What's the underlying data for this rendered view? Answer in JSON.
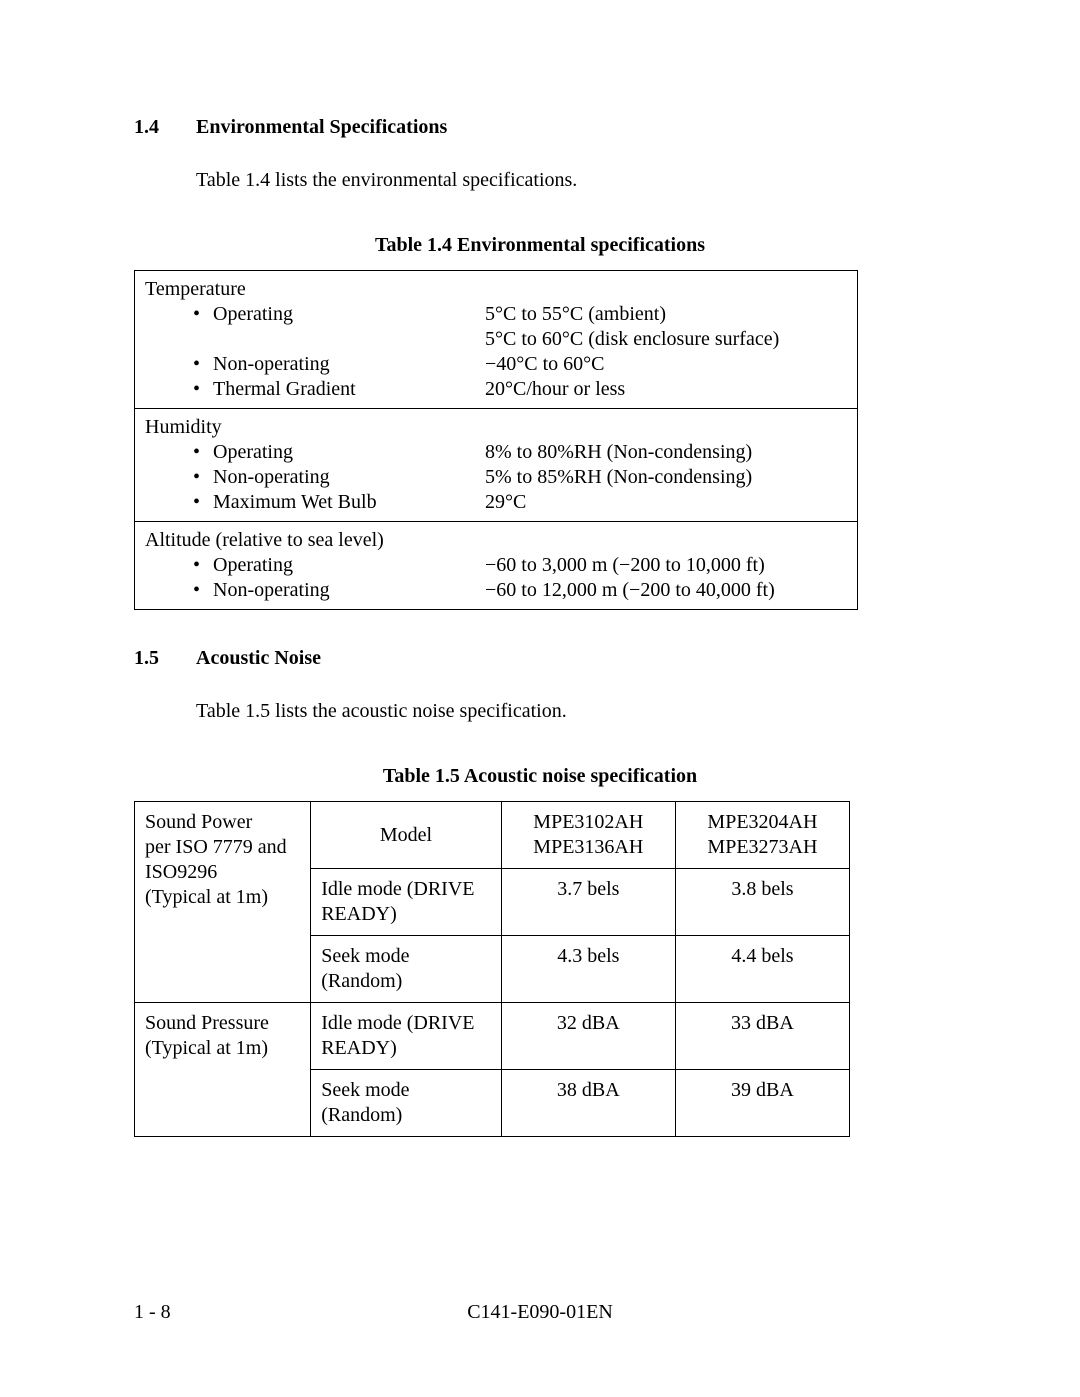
{
  "section14": {
    "num": "1.4",
    "title": "Environmental Specifications",
    "intro": "Table 1.4 lists the environmental specifications.",
    "caption": "Table 1.4    Environmental specifications"
  },
  "t14": {
    "r1": {
      "header": "Temperature",
      "b1_label": "Operating",
      "b1_val1": "5°C to 55°C (ambient)",
      "b1_val2": "5°C to 60°C (disk enclosure surface)",
      "b2_label": "Non-operating",
      "b2_val": "−40°C to 60°C",
      "b3_label": "Thermal Gradient",
      "b3_val": "20°C/hour or less"
    },
    "r2": {
      "header": "Humidity",
      "b1_label": "Operating",
      "b1_val": "8% to 80%RH (Non-condensing)",
      "b2_label": "Non-operating",
      "b2_val": "5% to 85%RH (Non-condensing)",
      "b3_label": "Maximum Wet Bulb",
      "b3_val": "29°C"
    },
    "r3": {
      "header": "Altitude (relative to sea level)",
      "b1_label": "Operating",
      "b1_val": "−60 to 3,000 m (−200 to 10,000 ft)",
      "b2_label": "Non-operating",
      "b2_val": "−60 to 12,000 m  (−200 to 40,000 ft)"
    }
  },
  "section15": {
    "num": "1.5",
    "title": "Acoustic Noise",
    "intro": "Table 1.5 lists the acoustic noise specification.",
    "caption": "Table 1.5    Acoustic noise specification"
  },
  "t15": {
    "rowA_header_l1": "Sound Power",
    "rowA_header_l2": "per ISO 7779 and",
    "rowA_header_l3": "ISO9296",
    "rowA_header_l4": "(Typical at 1m)",
    "rowB_header_l1": "Sound Pressure",
    "rowB_header_l2": "(Typical at 1m)",
    "model_label": "Model",
    "col3_l1": "MPE3102AH",
    "col3_l2": "MPE3136AH",
    "col4_l1": "MPE3204AH",
    "col4_l2": "MPE3273AH",
    "idle_label_l1": "Idle mode (DRIVE",
    "idle_label_l2": "READY)",
    "seek_label": "Seek mode (Random)",
    "a_idle_c3": "3.7 bels",
    "a_idle_c4": "3.8 bels",
    "a_seek_c3": "4.3 bels",
    "a_seek_c4": "4.4 bels",
    "b_idle_c3": "32 dBA",
    "b_idle_c4": "33 dBA",
    "b_seek_c3": "38 dBA",
    "b_seek_c4": "39 dBA"
  },
  "footer": {
    "left": "1 - 8",
    "center": "C141-E090-01EN"
  },
  "bullet": "•"
}
